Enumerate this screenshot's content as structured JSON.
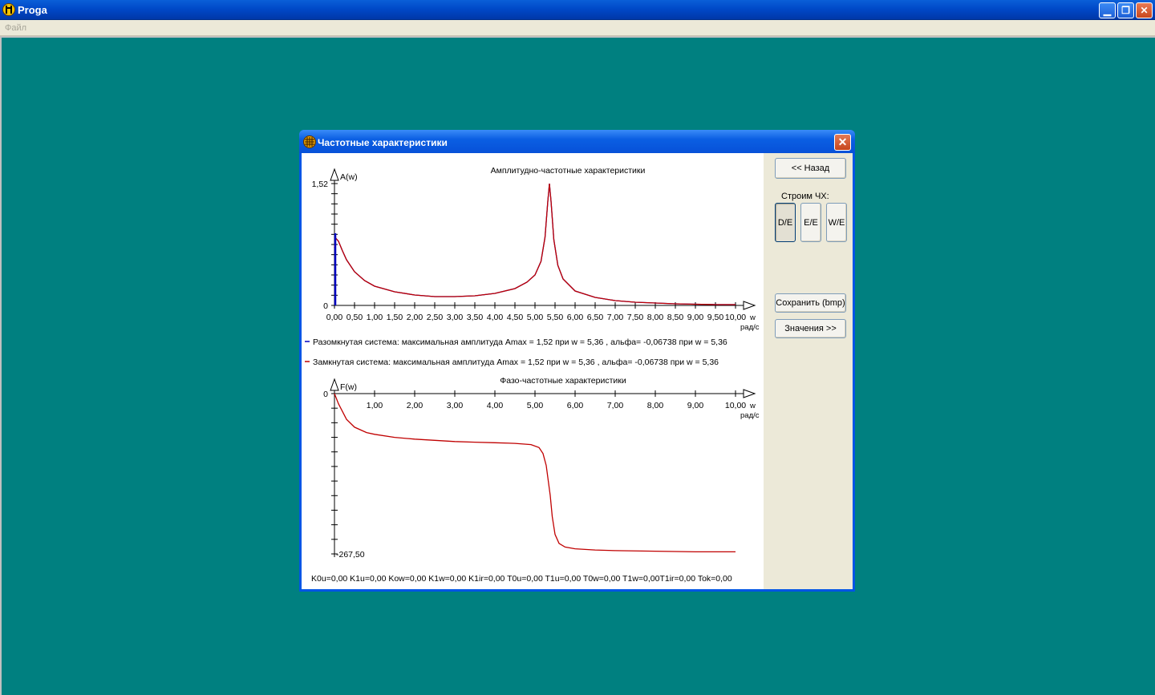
{
  "app": {
    "title": "Proga",
    "menu": [
      "Файл"
    ]
  },
  "dialog": {
    "title": "Частотные характеристики",
    "buttons": {
      "back": "<< Назад",
      "save": "Сохранить (bmp)",
      "values": "Значения >>"
    },
    "plot_label": "Строим ЧХ:",
    "plot_modes": [
      "D/E",
      "E/E",
      "W/E"
    ],
    "selected_mode": "D/E",
    "footer": "K0u=0,00 K1u=0,00 Kow=0,00 K1w=0,00 K1ir=0,00 T0u=0,00 T1u=0,00 T0w=0,00 T1w=0,00T1ir=0,00 Tok=0,00"
  },
  "legend": {
    "open": "Разомкнутая  система:  максимальная  амплитуда  Amax = 1,52  при  w = 5,36 , альфа= -0,06738  при  w = 5,36",
    "closed": "Замкнутая  система:     максимальная  амплитуда  Amax = 1,52  при  w = 5,36 , альфа= -0,06738  при  w = 5,36"
  },
  "colors": {
    "open": "#0000c0",
    "closed": "#c00000",
    "desktop": "#008080"
  },
  "chart_data": [
    {
      "type": "line",
      "title": "Амплитудно-частотные характеристики",
      "ylabel": "A(w)",
      "xlabel": "w",
      "xunit": "рад/с",
      "xlim": [
        0,
        10
      ],
      "ylim": [
        0,
        1.52
      ],
      "ytick_labels": [
        "1,52",
        "0"
      ],
      "xtick_labels": [
        "0,00",
        "0,50",
        "1,00",
        "1,50",
        "2,00",
        "2,50",
        "3,00",
        "3,50",
        "4,00",
        "4,50",
        "5,00",
        "5,50",
        "6,00",
        "6,50",
        "7,00",
        "7,50",
        "8,00",
        "8,50",
        "9,00",
        "9,50",
        "10,00"
      ],
      "series": [
        {
          "key": "open",
          "x": [
            0,
            0.03,
            0.1,
            0.2,
            0.3,
            0.5,
            0.75,
            1,
            1.5,
            2,
            2.5,
            3,
            3.5,
            4,
            4.5,
            4.8,
            5,
            5.15,
            5.25,
            5.32,
            5.36,
            5.4,
            5.47,
            5.57,
            5.7,
            6,
            6.5,
            7,
            7.5,
            8,
            8.5,
            9,
            9.5,
            10
          ],
          "y": [
            0.72,
            0.84,
            0.8,
            0.68,
            0.57,
            0.42,
            0.31,
            0.24,
            0.17,
            0.13,
            0.11,
            0.11,
            0.12,
            0.15,
            0.21,
            0.29,
            0.38,
            0.55,
            0.85,
            1.3,
            1.52,
            1.3,
            0.82,
            0.5,
            0.33,
            0.18,
            0.1,
            0.06,
            0.04,
            0.03,
            0.02,
            0.015,
            0.01,
            0.01
          ]
        },
        {
          "key": "closed",
          "x": [
            0,
            0.03,
            0.1,
            0.2,
            0.3,
            0.5,
            0.75,
            1,
            1.5,
            2,
            2.5,
            3,
            3.5,
            4,
            4.5,
            4.8,
            5,
            5.15,
            5.25,
            5.32,
            5.36,
            5.4,
            5.47,
            5.57,
            5.7,
            6,
            6.5,
            7,
            7.5,
            8,
            8.5,
            9,
            9.5,
            10
          ],
          "y": [
            0.72,
            0.84,
            0.8,
            0.68,
            0.57,
            0.42,
            0.31,
            0.24,
            0.17,
            0.13,
            0.11,
            0.11,
            0.12,
            0.15,
            0.21,
            0.29,
            0.38,
            0.55,
            0.85,
            1.3,
            1.52,
            1.3,
            0.82,
            0.5,
            0.33,
            0.18,
            0.1,
            0.06,
            0.04,
            0.03,
            0.02,
            0.015,
            0.01,
            0.01
          ]
        }
      ]
    },
    {
      "type": "line",
      "title": "Фазо-частотные характеристики",
      "ylabel": "F(w)",
      "xlabel": "w",
      "xunit": "рад/с",
      "xlim": [
        0,
        10
      ],
      "ylim": [
        -267.5,
        0
      ],
      "ytick_labels": [
        "0",
        "-267,50"
      ],
      "xtick_labels": [
        "1,00",
        "2,00",
        "3,00",
        "4,00",
        "5,00",
        "6,00",
        "7,00",
        "8,00",
        "9,00",
        "10,00"
      ],
      "series": [
        {
          "key": "closed",
          "x": [
            0,
            0.1,
            0.3,
            0.5,
            0.8,
            1,
            1.5,
            2,
            2.5,
            3,
            3.5,
            4,
            4.5,
            4.9,
            5.1,
            5.2,
            5.28,
            5.33,
            5.38,
            5.43,
            5.5,
            5.6,
            5.75,
            6,
            6.5,
            7,
            8,
            9,
            10
          ],
          "y": [
            0,
            -17,
            -43,
            -56,
            -65,
            -68,
            -73,
            -76,
            -78,
            -80,
            -81,
            -82,
            -83,
            -85,
            -90,
            -100,
            -120,
            -145,
            -170,
            -205,
            -235,
            -250,
            -256,
            -259,
            -261,
            -262,
            -263,
            -264,
            -264
          ]
        }
      ]
    }
  ]
}
